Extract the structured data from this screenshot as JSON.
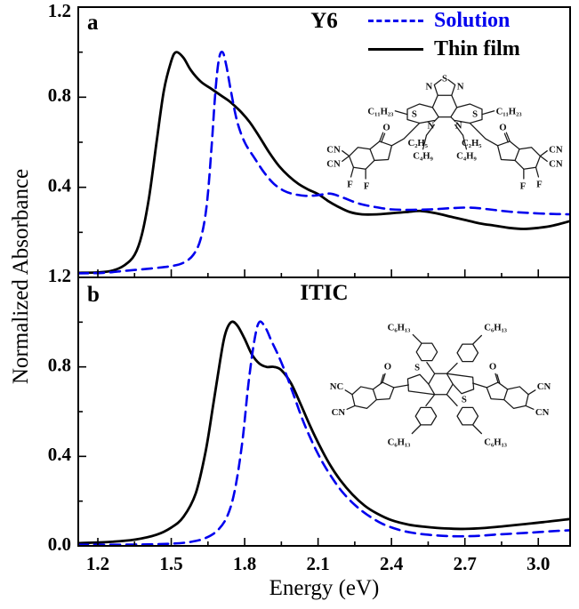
{
  "figure": {
    "x_axis_label": "Energy (eV)",
    "y_axis_label": "Normalized Absorbance"
  },
  "panels": [
    {
      "tag": "a",
      "title": "Y6"
    },
    {
      "tag": "b",
      "title": "ITIC"
    }
  ],
  "legend": {
    "items": [
      {
        "label": "Solution",
        "color": "#0000EE",
        "style": "dashed"
      },
      {
        "label": "Thin film",
        "color": "#000000",
        "style": "solid"
      }
    ]
  },
  "colors": {
    "solution_blue": "#0000EE",
    "film_black": "#000000",
    "background": "#FFFFFF"
  },
  "chart_data": [
    {
      "type": "line",
      "panel_label": "a",
      "title": "Y6",
      "xlabel": "Energy (eV)",
      "ylabel": "Normalized Absorbance",
      "xlim": [
        1.12,
        3.13
      ],
      "ylim": [
        0,
        1.2
      ],
      "x_ticks_major": [
        1.2,
        1.5,
        1.8,
        2.1,
        2.4,
        2.7,
        3.0
      ],
      "x_ticks_minor": [
        1.35,
        1.65,
        1.95,
        2.25,
        2.55,
        2.85
      ],
      "x_tick_labels": [
        "1.2",
        "1.5",
        "1.8",
        "2.1",
        "2.4",
        "2.7",
        "3.0"
      ],
      "show_x_tick_labels": false,
      "y_ticks_major": [
        0,
        0.4,
        0.8,
        1.2
      ],
      "y_ticks_minor": [
        0.2,
        0.6,
        1.0
      ],
      "y_tick_labels": [
        "",
        "0.4",
        "0.8",
        "1.2"
      ],
      "grid": false,
      "legend_position": "top-right",
      "series": [
        {
          "name": "Thin film",
          "color": "#000000",
          "dash": null,
          "width": 2.8,
          "points": [
            [
              1.12,
              0.02
            ],
            [
              1.2,
              0.022
            ],
            [
              1.26,
              0.03
            ],
            [
              1.31,
              0.055
            ],
            [
              1.35,
              0.1
            ],
            [
              1.38,
              0.19
            ],
            [
              1.41,
              0.36
            ],
            [
              1.44,
              0.6
            ],
            [
              1.47,
              0.83
            ],
            [
              1.5,
              0.96
            ],
            [
              1.52,
              1.0
            ],
            [
              1.55,
              0.975
            ],
            [
              1.58,
              0.92
            ],
            [
              1.62,
              0.87
            ],
            [
              1.66,
              0.84
            ],
            [
              1.7,
              0.81
            ],
            [
              1.74,
              0.78
            ],
            [
              1.78,
              0.74
            ],
            [
              1.82,
              0.69
            ],
            [
              1.86,
              0.625
            ],
            [
              1.9,
              0.555
            ],
            [
              1.94,
              0.495
            ],
            [
              1.98,
              0.45
            ],
            [
              2.02,
              0.415
            ],
            [
              2.06,
              0.39
            ],
            [
              2.1,
              0.37
            ],
            [
              2.14,
              0.34
            ],
            [
              2.18,
              0.315
            ],
            [
              2.23,
              0.29
            ],
            [
              2.28,
              0.28
            ],
            [
              2.34,
              0.28
            ],
            [
              2.4,
              0.285
            ],
            [
              2.46,
              0.29
            ],
            [
              2.52,
              0.295
            ],
            [
              2.58,
              0.285
            ],
            [
              2.64,
              0.27
            ],
            [
              2.7,
              0.255
            ],
            [
              2.76,
              0.24
            ],
            [
              2.82,
              0.23
            ],
            [
              2.88,
              0.22
            ],
            [
              2.94,
              0.215
            ],
            [
              3.0,
              0.22
            ],
            [
              3.06,
              0.23
            ],
            [
              3.13,
              0.25
            ]
          ]
        },
        {
          "name": "Solution",
          "color": "#0000EE",
          "dash": "11 7",
          "width": 2.6,
          "points": [
            [
              1.12,
              0.018
            ],
            [
              1.22,
              0.02
            ],
            [
              1.32,
              0.03
            ],
            [
              1.42,
              0.04
            ],
            [
              1.5,
              0.05
            ],
            [
              1.55,
              0.065
            ],
            [
              1.59,
              0.1
            ],
            [
              1.62,
              0.17
            ],
            [
              1.645,
              0.32
            ],
            [
              1.665,
              0.58
            ],
            [
              1.68,
              0.82
            ],
            [
              1.695,
              0.97
            ],
            [
              1.71,
              1.0
            ],
            [
              1.725,
              0.94
            ],
            [
              1.745,
              0.82
            ],
            [
              1.77,
              0.69
            ],
            [
              1.8,
              0.6
            ],
            [
              1.84,
              0.53
            ],
            [
              1.88,
              0.465
            ],
            [
              1.92,
              0.415
            ],
            [
              1.96,
              0.385
            ],
            [
              2.0,
              0.37
            ],
            [
              2.05,
              0.362
            ],
            [
              2.1,
              0.365
            ],
            [
              2.15,
              0.372
            ],
            [
              2.2,
              0.355
            ],
            [
              2.26,
              0.33
            ],
            [
              2.32,
              0.315
            ],
            [
              2.4,
              0.302
            ],
            [
              2.48,
              0.3
            ],
            [
              2.56,
              0.302
            ],
            [
              2.64,
              0.307
            ],
            [
              2.72,
              0.31
            ],
            [
              2.8,
              0.302
            ],
            [
              2.88,
              0.292
            ],
            [
              2.96,
              0.286
            ],
            [
              3.05,
              0.282
            ],
            [
              3.13,
              0.28
            ]
          ]
        }
      ]
    },
    {
      "type": "line",
      "panel_label": "b",
      "title": "ITIC",
      "xlabel": "Energy (eV)",
      "ylabel": "Normalized Absorbance",
      "xlim": [
        1.12,
        3.13
      ],
      "ylim": [
        0,
        1.2
      ],
      "x_ticks_major": [
        1.2,
        1.5,
        1.8,
        2.1,
        2.4,
        2.7,
        3.0
      ],
      "x_ticks_minor": [
        1.35,
        1.65,
        1.95,
        2.25,
        2.55,
        2.85
      ],
      "x_tick_labels": [
        "1.2",
        "1.5",
        "1.8",
        "2.1",
        "2.4",
        "2.7",
        "3.0"
      ],
      "show_x_tick_labels": true,
      "y_ticks_major": [
        0,
        0.4,
        0.8,
        1.2
      ],
      "y_ticks_minor": [
        0.2,
        0.6,
        1.0
      ],
      "y_tick_labels": [
        "0.0",
        "0.4",
        "0.8",
        "1.2"
      ],
      "grid": false,
      "legend_position": "none",
      "series": [
        {
          "name": "Thin film",
          "color": "#000000",
          "dash": null,
          "width": 2.8,
          "points": [
            [
              1.12,
              0.012
            ],
            [
              1.25,
              0.018
            ],
            [
              1.35,
              0.028
            ],
            [
              1.44,
              0.05
            ],
            [
              1.5,
              0.082
            ],
            [
              1.55,
              0.13
            ],
            [
              1.6,
              0.235
            ],
            [
              1.64,
              0.42
            ],
            [
              1.67,
              0.62
            ],
            [
              1.7,
              0.83
            ],
            [
              1.72,
              0.945
            ],
            [
              1.745,
              1.0
            ],
            [
              1.77,
              0.985
            ],
            [
              1.8,
              0.925
            ],
            [
              1.83,
              0.855
            ],
            [
              1.86,
              0.815
            ],
            [
              1.89,
              0.8
            ],
            [
              1.92,
              0.8
            ],
            [
              1.95,
              0.785
            ],
            [
              1.99,
              0.725
            ],
            [
              2.03,
              0.63
            ],
            [
              2.07,
              0.53
            ],
            [
              2.11,
              0.44
            ],
            [
              2.15,
              0.36
            ],
            [
              2.19,
              0.295
            ],
            [
              2.24,
              0.23
            ],
            [
              2.29,
              0.18
            ],
            [
              2.34,
              0.145
            ],
            [
              2.4,
              0.115
            ],
            [
              2.47,
              0.095
            ],
            [
              2.54,
              0.085
            ],
            [
              2.62,
              0.078
            ],
            [
              2.7,
              0.076
            ],
            [
              2.78,
              0.08
            ],
            [
              2.86,
              0.088
            ],
            [
              2.94,
              0.097
            ],
            [
              3.02,
              0.106
            ],
            [
              3.13,
              0.12
            ]
          ]
        },
        {
          "name": "Solution",
          "color": "#0000EE",
          "dash": "11 7",
          "width": 2.6,
          "points": [
            [
              1.12,
              0.005
            ],
            [
              1.35,
              0.006
            ],
            [
              1.5,
              0.01
            ],
            [
              1.58,
              0.018
            ],
            [
              1.64,
              0.035
            ],
            [
              1.69,
              0.07
            ],
            [
              1.73,
              0.135
            ],
            [
              1.76,
              0.25
            ],
            [
              1.79,
              0.46
            ],
            [
              1.815,
              0.72
            ],
            [
              1.84,
              0.92
            ],
            [
              1.86,
              1.0
            ],
            [
              1.885,
              0.975
            ],
            [
              1.91,
              0.915
            ],
            [
              1.94,
              0.845
            ],
            [
              1.97,
              0.765
            ],
            [
              2.0,
              0.675
            ],
            [
              2.04,
              0.555
            ],
            [
              2.08,
              0.455
            ],
            [
              2.12,
              0.37
            ],
            [
              2.16,
              0.3
            ],
            [
              2.2,
              0.24
            ],
            [
              2.25,
              0.183
            ],
            [
              2.3,
              0.14
            ],
            [
              2.36,
              0.1
            ],
            [
              2.43,
              0.072
            ],
            [
              2.5,
              0.056
            ],
            [
              2.58,
              0.047
            ],
            [
              2.66,
              0.043
            ],
            [
              2.74,
              0.044
            ],
            [
              2.82,
              0.05
            ],
            [
              2.9,
              0.055
            ],
            [
              2.98,
              0.06
            ],
            [
              3.06,
              0.066
            ],
            [
              3.13,
              0.07
            ]
          ]
        }
      ]
    }
  ],
  "inset_y6": {
    "labels": [
      "S",
      "N",
      "N",
      "C₁₁H₂₃",
      "C₁₁H₂₃",
      "S",
      "S",
      "N",
      "N",
      "C₂H₅",
      "C₄H₉",
      "C₂H₅",
      "C₄H₉",
      "O",
      "O",
      "CN",
      "CN",
      "CN",
      "CN",
      "F",
      "F",
      "F",
      "F"
    ]
  },
  "inset_itic": {
    "labels": [
      "C₆H₁₃",
      "C₆H₁₃",
      "C₆H₁₃",
      "C₆H₁₃",
      "S",
      "S",
      "NC",
      "CN",
      "CN",
      "CN",
      "O",
      "O"
    ]
  }
}
